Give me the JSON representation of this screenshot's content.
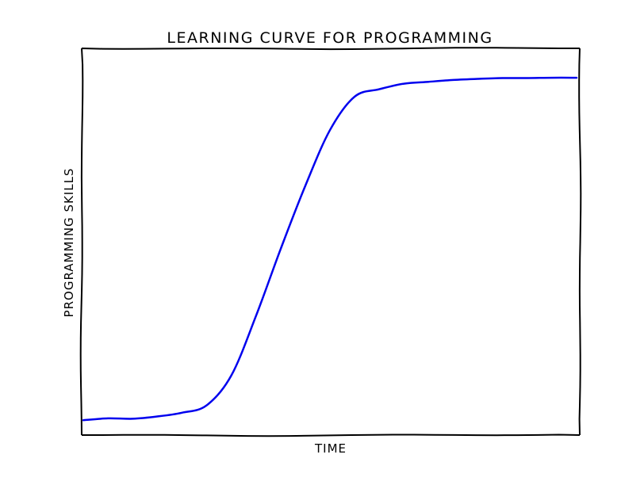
{
  "chart_data": {
    "type": "line",
    "title": "LEARNING CURVE FOR PROGRAMMING",
    "xlabel": "TIME",
    "ylabel": "PROGRAMMING SKILLS",
    "grid": false,
    "series": [
      {
        "color": "#0000ee",
        "x": [
          0,
          0.05,
          0.1,
          0.15,
          0.2,
          0.25,
          0.3,
          0.35,
          0.4,
          0.45,
          0.5,
          0.55,
          0.6,
          0.65,
          0.7,
          0.75,
          0.8,
          0.85,
          0.9,
          0.95,
          1.0
        ],
        "y": [
          0.0,
          0.005,
          0.004,
          0.01,
          0.02,
          0.04,
          0.12,
          0.28,
          0.46,
          0.63,
          0.78,
          0.87,
          0.89,
          0.905,
          0.91,
          0.915,
          0.918,
          0.92,
          0.92,
          0.921,
          0.921
        ]
      }
    ],
    "xlim": [
      0,
      1
    ],
    "ylim": [
      -0.04,
      1.0
    ]
  }
}
